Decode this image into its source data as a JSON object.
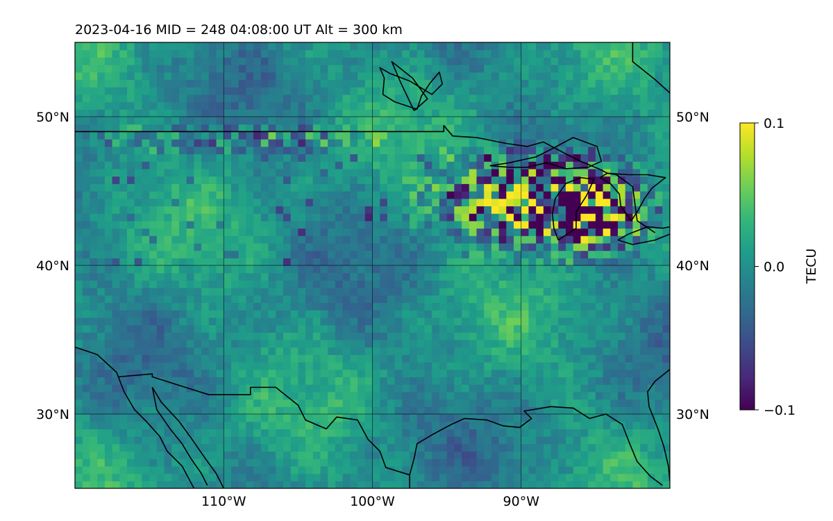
{
  "chart_data": {
    "type": "heatmap",
    "title": "2023-04-16  MID = 248    04:08:00  UT  Alt = 300 km",
    "map": {
      "lon_range": [
        -120,
        -80
      ],
      "lat_range": [
        25,
        55
      ],
      "lon_ticks": [
        -110,
        -100,
        -90
      ],
      "lon_tick_labels": [
        "110°W",
        "100°W",
        "90°W"
      ],
      "lat_ticks": [
        30,
        40,
        50
      ],
      "lat_tick_labels": [
        "30°N",
        "40°N",
        "50°N"
      ],
      "grid": true,
      "coastlines": true
    },
    "colorbar": {
      "label": "TECU",
      "colormap": "viridis",
      "vmin": -0.1,
      "vmax": 0.1,
      "ticks": [
        -0.1,
        0.0,
        0.1
      ],
      "tick_labels": [
        "−0.1",
        "0.0",
        "0.1"
      ],
      "location": "right"
    },
    "grid_resolution_deg": [
      0.5,
      0.5
    ],
    "hotspots": [
      {
        "lon": -90,
        "lat": 44.5,
        "amp": 0.075,
        "spread": [
          5.5,
          2.8
        ]
      },
      {
        "lon": -85,
        "lat": 43.5,
        "amp": 0.07,
        "spread": [
          3,
          2.5
        ]
      },
      {
        "lon": -106,
        "lat": 48.5,
        "amp": 0.03,
        "spread": [
          6,
          1
        ]
      },
      {
        "lon": -115,
        "lat": 48.5,
        "amp": 0.02,
        "spread": [
          4,
          1
        ]
      }
    ],
    "colors": {
      "viridis": [
        "#440154",
        "#482878",
        "#3e4a89",
        "#31688e",
        "#26828e",
        "#1f9e89",
        "#35b779",
        "#6ece58",
        "#b5de2b",
        "#fde725"
      ]
    }
  }
}
